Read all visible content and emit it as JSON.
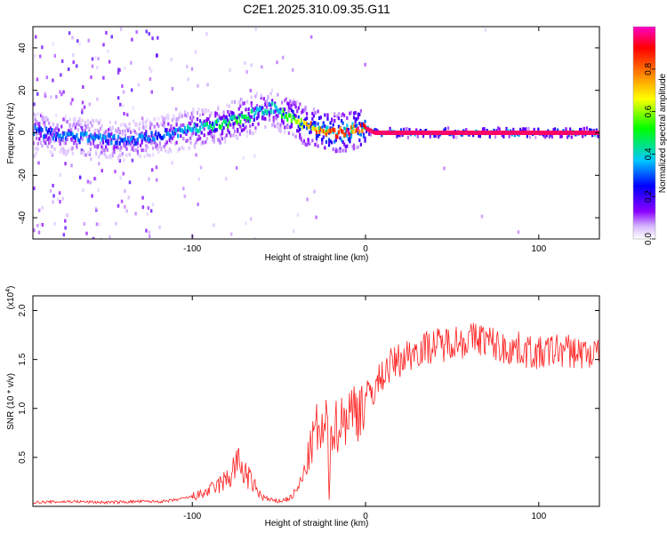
{
  "figure": {
    "title": "C2E1.2025.310.09.35.G11"
  },
  "chart_data": [
    {
      "type": "heatmap",
      "title": "C2E1.2025.310.09.35.G11",
      "xlabel": "Height of straight line (km)",
      "ylabel": "Frequency (Hz)",
      "xlim": [
        -192,
        135
      ],
      "ylim": [
        -50,
        50
      ],
      "x_ticks": [
        -100,
        0,
        100
      ],
      "x_tick_labels": [
        "-100",
        "0",
        "100"
      ],
      "y_ticks": [
        -40,
        -20,
        0,
        20,
        40
      ],
      "y_tick_labels": [
        "-40",
        "-20",
        "0",
        "20",
        "40"
      ],
      "ridge": {
        "description": "Doppler frequency ridge (peak spectral amplitude) vs height",
        "x": [
          -192,
          -180,
          -165,
          -150,
          -140,
          -130,
          -120,
          -110,
          -100,
          -90,
          -80,
          -70,
          -62,
          -55,
          -48,
          -42,
          -35,
          -28,
          -20,
          -12,
          -5,
          0,
          5,
          20,
          60,
          100,
          135
        ],
        "y": [
          1,
          -1,
          -2,
          -3,
          -4,
          -3,
          -1,
          0,
          2,
          3,
          5,
          7,
          10,
          12,
          9,
          7,
          3,
          2,
          0,
          0,
          2,
          2,
          0,
          0,
          0,
          0,
          0
        ],
        "amplitude": [
          0.3,
          0.3,
          0.35,
          0.35,
          0.3,
          0.35,
          0.3,
          0.35,
          0.4,
          0.45,
          0.5,
          0.5,
          0.4,
          0.4,
          0.5,
          0.55,
          0.7,
          0.8,
          0.85,
          0.9,
          0.9,
          0.95,
          0.95,
          0.95,
          0.95,
          0.95,
          0.95
        ]
      },
      "colorbar": {
        "label": "Normalized spectral amplitude",
        "range": [
          0,
          1
        ],
        "ticks": [
          0.0,
          0.2,
          0.4,
          0.6,
          0.8
        ],
        "tick_labels": [
          "0.0",
          "0.2",
          "0.4",
          "0.6",
          "0.8"
        ],
        "colors": [
          "#ffffff",
          "#8a00ff",
          "#0000ff",
          "#00c8ff",
          "#00ff00",
          "#ffff00",
          "#ff7f00",
          "#ff0000",
          "#ff00c8"
        ]
      }
    },
    {
      "type": "line",
      "title": "",
      "xlabel": "Height of straight line (km)",
      "ylabel": "SNR (10 * v/v)",
      "y_exponent_label": "(x10",
      "y_exponent_power": "4",
      "y_exponent_close": ")",
      "xlim": [
        -192,
        135
      ],
      "ylim": [
        0,
        2.15
      ],
      "x_ticks": [
        -100,
        0,
        100
      ],
      "x_tick_labels": [
        "-100",
        "0",
        "100"
      ],
      "y_ticks": [
        0.5,
        1.0,
        1.5,
        2.0
      ],
      "y_tick_labels": [
        "0.5",
        "1.0",
        "1.5",
        "2.0"
      ],
      "series": [
        {
          "name": "SNR",
          "color": "#ff2020",
          "x": [
            -192,
            -170,
            -150,
            -130,
            -115,
            -105,
            -95,
            -88,
            -82,
            -78,
            -75,
            -72,
            -68,
            -64,
            -60,
            -56,
            -52,
            -48,
            -44,
            -40,
            -36,
            -33,
            -30,
            -28,
            -26,
            -24,
            -22,
            -21,
            -20,
            -18,
            -15,
            -10,
            -5,
            0,
            5,
            10,
            15,
            20,
            25,
            30,
            35,
            40,
            45,
            50,
            55,
            60,
            65,
            70,
            75,
            80,
            85,
            90,
            95,
            100,
            110,
            120,
            135
          ],
          "y": [
            0.04,
            0.05,
            0.04,
            0.05,
            0.05,
            0.08,
            0.12,
            0.18,
            0.25,
            0.3,
            0.45,
            0.4,
            0.3,
            0.2,
            0.1,
            0.07,
            0.05,
            0.06,
            0.08,
            0.15,
            0.3,
            0.5,
            0.7,
            0.8,
            0.7,
            0.75,
            0.9,
            0.05,
            0.85,
            0.8,
            0.85,
            0.95,
            1.0,
            1.1,
            1.2,
            1.35,
            1.45,
            1.5,
            1.55,
            1.6,
            1.62,
            1.65,
            1.65,
            1.7,
            1.68,
            1.7,
            1.72,
            1.7,
            1.65,
            1.6,
            1.62,
            1.6,
            1.58,
            1.55,
            1.6,
            1.58,
            1.55
          ]
        }
      ]
    }
  ]
}
